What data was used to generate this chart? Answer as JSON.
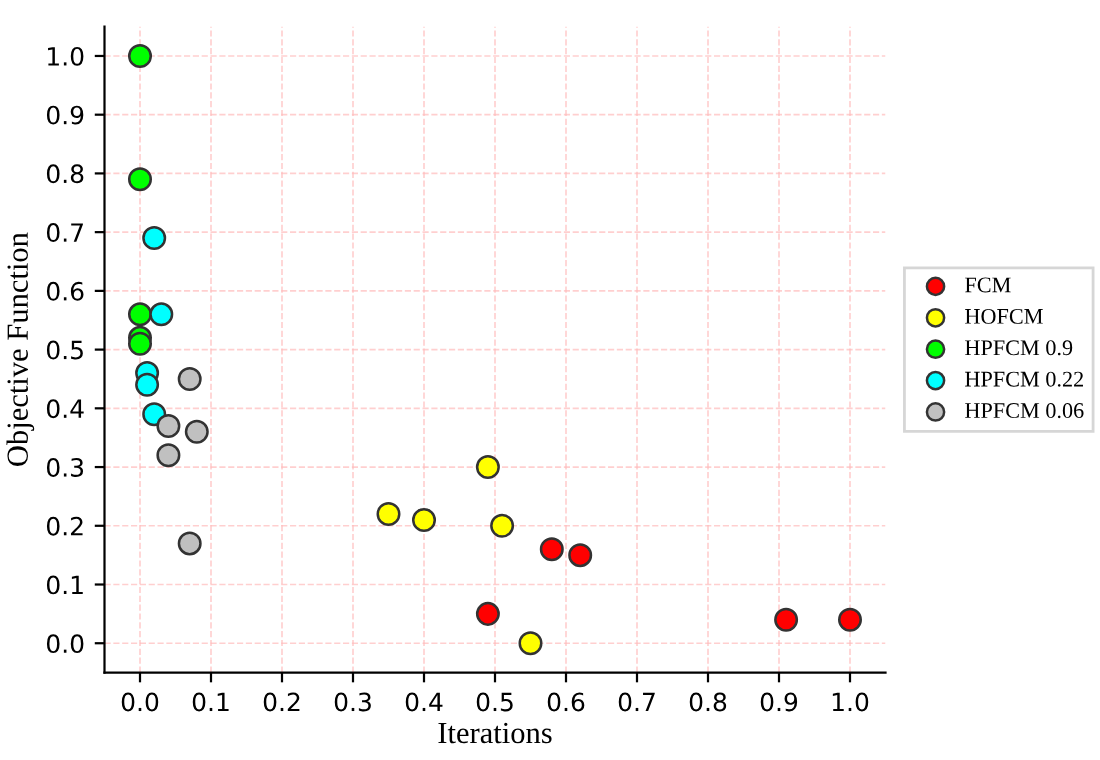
{
  "chart_data": {
    "type": "scatter",
    "xlabel": "Iterations",
    "ylabel": "Objective Function",
    "xlim": [
      -0.05,
      1.05
    ],
    "ylim": [
      -0.05,
      1.05
    ],
    "xticks": [
      {
        "value": 0,
        "label": "0.0"
      },
      0.1,
      0.2,
      0.3,
      0.4,
      0.5,
      0.6,
      0.7,
      0.8,
      0.9,
      {
        "value": 1,
        "label": "1.0"
      }
    ],
    "yticks": [
      {
        "value": 0,
        "label": "0.0"
      },
      0.1,
      0.2,
      0.3,
      0.4,
      0.5,
      0.6,
      0.7,
      0.8,
      0.9,
      {
        "value": 1,
        "label": "1.0"
      }
    ],
    "grid": true,
    "legend": "right",
    "marker": "circle",
    "series": [
      {
        "name": "FCM",
        "color": "#ff0000",
        "x": [
          0.49,
          0.58,
          0.62,
          0.91,
          1.0
        ],
        "values": [
          0.05,
          0.16,
          0.15,
          0.04,
          0.04
        ]
      },
      {
        "name": "HOFCM",
        "color": "#ffff00",
        "x": [
          0.35,
          0.4,
          0.49,
          0.51,
          0.55
        ],
        "values": [
          0.22,
          0.21,
          0.3,
          0.2,
          0.0
        ]
      },
      {
        "name": "HPFCM 0.9",
        "color": "#00ff00",
        "x": [
          0,
          0,
          0,
          0,
          0
        ],
        "values": [
          1.0,
          0.79,
          0.56,
          0.52,
          0.51
        ]
      },
      {
        "name": "HPFCM 0.22",
        "color": "#00ffff",
        "x": [
          0.02,
          0.03,
          0.01,
          0.01,
          0.02
        ],
        "values": [
          0.69,
          0.56,
          0.46,
          0.44,
          0.39
        ]
      },
      {
        "name": "HPFCM 0.06",
        "color": "#c0c0c0",
        "x": [
          0.07,
          0.04,
          0.08,
          0.04,
          0.07
        ],
        "values": [
          0.45,
          0.37,
          0.36,
          0.32,
          0.17
        ]
      }
    ]
  }
}
